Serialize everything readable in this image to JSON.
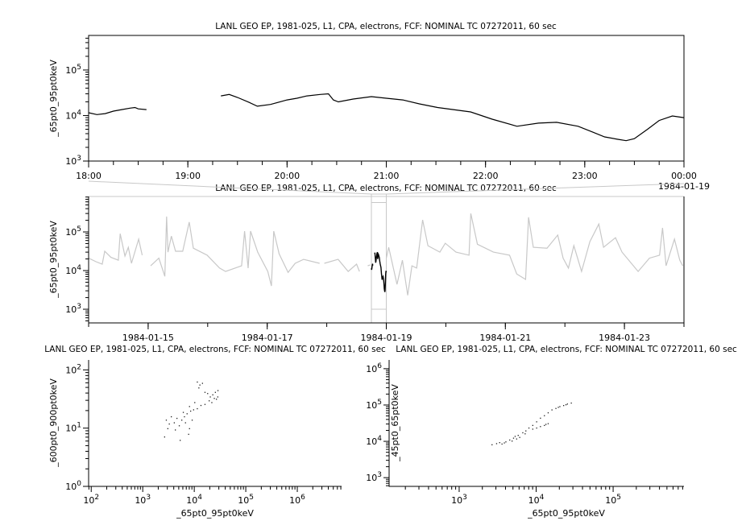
{
  "chart_data": [
    {
      "type": "line",
      "title": "LANL GEO EP, 1981-025, L1, CPA, electrons, FCF: NOMINAL TC 07272011, 60 sec",
      "ylabel": "_65pt0_95pt0keV",
      "xlabel": "",
      "y_scale": "log",
      "ylim": [
        1000,
        575000
      ],
      "xlim": [
        "1984-01-18T18:00",
        "1984-01-19T00:00"
      ],
      "x_ticks": [
        {
          "t": "1984-01-18T18:00",
          "label": "18:00"
        },
        {
          "t": "1984-01-18T19:00",
          "label": "19:00"
        },
        {
          "t": "1984-01-18T20:00",
          "label": "20:00"
        },
        {
          "t": "1984-01-18T21:00",
          "label": "21:00"
        },
        {
          "t": "1984-01-18T22:00",
          "label": "22:00"
        },
        {
          "t": "1984-01-18T23:00",
          "label": "23:00"
        },
        {
          "t": "1984-01-19T00:00",
          "label": "00:00"
        }
      ],
      "x_date_label": "1984-01-19",
      "y_ticks": [
        {
          "v": 1000,
          "label": "10^3"
        },
        {
          "v": 10000,
          "label": "10^4"
        },
        {
          "v": 100000,
          "label": "10^5"
        }
      ],
      "line_color": "#000000",
      "segments": [
        [
          [
            "1984-01-18T18:00",
            11500
          ],
          [
            "1984-01-18T18:05",
            10500
          ],
          [
            "1984-01-18T18:10",
            11000
          ],
          [
            "1984-01-18T18:15",
            12500
          ],
          [
            "1984-01-18T18:20",
            13500
          ],
          [
            "1984-01-18T18:25",
            14500
          ],
          [
            "1984-01-18T18:28",
            15000
          ],
          [
            "1984-01-18T18:30",
            14000
          ],
          [
            "1984-01-18T18:35",
            13500
          ]
        ],
        [
          [
            "1984-01-18T19:20",
            27000
          ],
          [
            "1984-01-18T19:25",
            29000
          ],
          [
            "1984-01-18T19:30",
            25000
          ],
          [
            "1984-01-18T19:37",
            19500
          ],
          [
            "1984-01-18T19:42",
            16000
          ],
          [
            "1984-01-18T19:50",
            17500
          ],
          [
            "1984-01-18T20:00",
            22000
          ],
          [
            "1984-01-18T20:06",
            24000
          ],
          [
            "1984-01-18T20:12",
            27000
          ],
          [
            "1984-01-18T20:20",
            29000
          ],
          [
            "1984-01-18T20:25",
            30000
          ],
          [
            "1984-01-18T20:28",
            22000
          ],
          [
            "1984-01-18T20:31",
            20000
          ],
          [
            "1984-01-18T20:40",
            23000
          ],
          [
            "1984-01-18T20:51",
            26000
          ],
          [
            "1984-01-18T21:00",
            24000
          ],
          [
            "1984-01-18T21:10",
            22000
          ],
          [
            "1984-01-18T21:20",
            18000
          ],
          [
            "1984-01-18T21:31",
            15000
          ],
          [
            "1984-01-18T21:51",
            12000
          ],
          [
            "1984-01-18T22:04",
            8300
          ],
          [
            "1984-01-18T22:19",
            5800
          ],
          [
            "1984-01-18T22:32",
            6800
          ],
          [
            "1984-01-18T22:43",
            7100
          ],
          [
            "1984-01-18T22:56",
            5800
          ],
          [
            "1984-01-18T23:05",
            4300
          ],
          [
            "1984-01-18T23:12",
            3400
          ],
          [
            "1984-01-18T23:20",
            3000
          ],
          [
            "1984-01-18T23:25",
            2800
          ],
          [
            "1984-01-18T23:30",
            3100
          ],
          [
            "1984-01-18T23:38",
            5000
          ],
          [
            "1984-01-18T23:45",
            7800
          ],
          [
            "1984-01-18T23:53",
            9800
          ],
          [
            "1984-01-19T00:00",
            9000
          ]
        ]
      ]
    },
    {
      "type": "line",
      "title": "LANL GEO EP, 1981-025, L1, CPA, electrons, FCF: NOMINAL TC 07272011, 60 sec",
      "ylabel": "_65pt0_95pt0keV",
      "xlabel": "",
      "y_scale": "log",
      "ylim": [
        443,
        826000
      ],
      "xlim": [
        "1984-01-14T00:00",
        "1984-01-24T00:00"
      ],
      "x_ticks": [
        {
          "t": "1984-01-15T00:00",
          "label": "1984-01-15"
        },
        {
          "t": "1984-01-17T00:00",
          "label": "1984-01-17"
        },
        {
          "t": "1984-01-19T00:00",
          "label": "1984-01-19"
        },
        {
          "t": "1984-01-21T00:00",
          "label": "1984-01-21"
        },
        {
          "t": "1984-01-23T00:00",
          "label": "1984-01-23"
        }
      ],
      "y_ticks": [
        {
          "v": 1000,
          "label": "10^3"
        },
        {
          "v": 10000,
          "label": "10^4"
        },
        {
          "v": 100000,
          "label": "10^5"
        }
      ],
      "context_color": "#c8c8c8",
      "highlight_range": [
        "1984-01-18T18:00",
        "1984-01-19T00:00"
      ],
      "segments": [
        [
          [
            "1984-01-14T00:00",
            21000
          ],
          [
            "1984-01-14T03:00",
            17000
          ],
          [
            "1984-01-14T05:30",
            14700
          ],
          [
            "1984-01-14T06:29",
            31600
          ],
          [
            "1984-01-14T09:00",
            22000
          ],
          [
            "1984-01-14T12:00",
            18600
          ],
          [
            "1984-01-14T12:43",
            90000
          ],
          [
            "1984-01-14T14:38",
            23700
          ],
          [
            "1984-01-14T16:00",
            40000
          ],
          [
            "1984-01-14T17:17",
            15400
          ],
          [
            "1984-01-14T20:10",
            65000
          ],
          [
            "1984-01-14T21:36",
            25000
          ]
        ],
        [
          [
            "1984-01-15T01:00",
            13300
          ],
          [
            "1984-01-15T04:19",
            21000
          ],
          [
            "1984-01-15T06:43",
            7100
          ],
          [
            "1984-01-15T07:26",
            250000
          ],
          [
            "1984-01-15T08:00",
            30000
          ],
          [
            "1984-01-15T09:22",
            78000
          ],
          [
            "1984-01-15T11:02",
            31600
          ],
          [
            "1984-01-15T13:55",
            31600
          ],
          [
            "1984-01-15T16:34",
            180000
          ],
          [
            "1984-01-15T18:14",
            38000
          ],
          [
            "1984-01-15T23:46",
            25000
          ],
          [
            "1984-01-16T04:48",
            11600
          ],
          [
            "1984-01-16T07:12",
            9500
          ],
          [
            "1984-01-16T13:41",
            13300
          ],
          [
            "1984-01-16T14:53",
            105000
          ],
          [
            "1984-01-16T16:19",
            11600
          ],
          [
            "1984-01-16T17:17",
            105000
          ],
          [
            "1984-01-16T20:10",
            30000
          ],
          [
            "1984-01-17T00:14",
            9500
          ],
          [
            "1984-01-17T01:41",
            4000
          ],
          [
            "1984-01-17T02:38",
            105000
          ],
          [
            "1984-01-17T04:48",
            27000
          ],
          [
            "1984-01-17T08:24",
            9000
          ],
          [
            "1984-01-17T11:17",
            15400
          ],
          [
            "1984-01-17T14:38",
            19500
          ],
          [
            "1984-01-17T21:07",
            15400
          ]
        ],
        [
          [
            "1984-01-17T23:02",
            15400
          ],
          [
            "1984-01-18T04:34",
            19500
          ],
          [
            "1984-01-18T08:38",
            9500
          ],
          [
            "1984-01-18T12:00",
            14700
          ],
          [
            "1984-01-18T13:12",
            9500
          ]
        ],
        [
          [
            "1984-01-18T16:30",
            13300
          ],
          [
            "1984-01-18T17:31",
            14000
          ]
        ],
        [
          [
            "1984-01-19T00:00",
            21000
          ],
          [
            "1984-01-19T00:58",
            40000
          ],
          [
            "1984-01-19T04:19",
            4400
          ],
          [
            "1984-01-19T06:29",
            18600
          ],
          [
            "1984-01-19T08:38",
            2300
          ],
          [
            "1984-01-19T10:19",
            13300
          ],
          [
            "1984-01-19T12:14",
            11600
          ],
          [
            "1984-01-19T14:38",
            205000
          ],
          [
            "1984-01-19T16:48",
            44000
          ],
          [
            "1984-01-19T21:36",
            30000
          ],
          [
            "1984-01-19T23:46",
            51000
          ],
          [
            "1984-01-20T04:05",
            30000
          ],
          [
            "1984-01-20T09:22",
            25000
          ],
          [
            "1984-01-20T10:05",
            300000
          ],
          [
            "1984-01-20T12:43",
            48000
          ],
          [
            "1984-01-20T19:12",
            30000
          ],
          [
            "1984-01-21T01:41",
            25000
          ],
          [
            "1984-01-21T04:34",
            8200
          ],
          [
            "1984-01-21T08:10",
            5900
          ],
          [
            "1984-01-21T09:22",
            240000
          ],
          [
            "1984-01-21T11:17",
            40000
          ],
          [
            "1984-01-21T16:48",
            38000
          ],
          [
            "1984-01-21T21:07",
            83000
          ],
          [
            "1984-01-21T23:17",
            21000
          ],
          [
            "1984-01-22T01:26",
            11600
          ],
          [
            "1984-01-22T03:36",
            44000
          ],
          [
            "1984-01-22T06:43",
            9500
          ],
          [
            "1984-01-22T10:05",
            56000
          ],
          [
            "1984-01-22T13:41",
            160000
          ],
          [
            "1984-01-22T15:36",
            40000
          ],
          [
            "1984-01-22T20:24",
            71000
          ],
          [
            "1984-01-22T23:02",
            30000
          ],
          [
            "1984-01-23T05:31",
            9500
          ],
          [
            "1984-01-23T10:05",
            21000
          ],
          [
            "1984-01-23T14:10",
            25000
          ],
          [
            "1984-01-23T15:22",
            127000
          ],
          [
            "1984-01-23T16:48",
            13300
          ],
          [
            "1984-01-23T20:10",
            65000
          ],
          [
            "1984-01-23T22:19",
            18600
          ],
          [
            "1984-01-23T23:31",
            13300
          ]
        ]
      ]
    },
    {
      "type": "scatter",
      "title": "LANL GEO EP, 1981-025, L1, CPA, electrons, FCF: NOMINAL TC 07272011, 60 sec",
      "xlabel": "_65pt0_95pt0keV",
      "ylabel": "_600pt0_900pt0keV",
      "x_scale": "log",
      "y_scale": "log",
      "xlim": [
        89,
        7240000
      ],
      "ylim": [
        1,
        148
      ],
      "x_ticks": [
        {
          "v": 100,
          "label": "10^2"
        },
        {
          "v": 1000,
          "label": "10^3"
        },
        {
          "v": 10000,
          "label": "10^4"
        },
        {
          "v": 100000,
          "label": "10^5"
        },
        {
          "v": 1000000,
          "label": "10^6"
        }
      ],
      "y_ticks": [
        {
          "v": 1,
          "label": "10^0"
        },
        {
          "v": 10,
          "label": "10^1"
        },
        {
          "v": 100,
          "label": "10^2"
        }
      ],
      "points": [
        [
          11200,
          63
        ],
        [
          12600,
          56
        ],
        [
          14100,
          60
        ],
        [
          12000,
          50
        ],
        [
          15800,
          42
        ],
        [
          17800,
          40
        ],
        [
          20000,
          35
        ],
        [
          22400,
          38
        ],
        [
          25100,
          42
        ],
        [
          28200,
          45
        ],
        [
          26300,
          32
        ],
        [
          21400,
          28
        ],
        [
          19000,
          30
        ],
        [
          24000,
          33
        ],
        [
          28000,
          35
        ],
        [
          15800,
          26
        ],
        [
          13200,
          25
        ],
        [
          11200,
          22
        ],
        [
          9500,
          21
        ],
        [
          8300,
          20
        ],
        [
          7100,
          18
        ],
        [
          6300,
          16
        ],
        [
          5600,
          14
        ],
        [
          6600,
          12.6
        ],
        [
          5000,
          11.2
        ],
        [
          4500,
          15
        ],
        [
          4000,
          12.6
        ],
        [
          3500,
          16
        ],
        [
          3200,
          12
        ],
        [
          2800,
          14
        ],
        [
          3000,
          10
        ],
        [
          4200,
          9.5
        ],
        [
          7900,
          10
        ],
        [
          8900,
          14
        ],
        [
          6000,
          19
        ],
        [
          7600,
          8
        ],
        [
          5200,
          6.3
        ],
        [
          2600,
          7.2
        ],
        [
          7900,
          24
        ],
        [
          10000,
          28
        ]
      ]
    },
    {
      "type": "scatter",
      "title": "LANL GEO EP, 1981-025, L1, CPA, electrons, FCF: NOMINAL TC 07272011, 60 sec",
      "xlabel": "_65pt0_95pt0keV",
      "ylabel": "_45pt0_65pt0keV",
      "x_scale": "log",
      "y_scale": "log",
      "xlim": [
        123,
        832000
      ],
      "ylim": [
        575,
        1740000
      ],
      "x_ticks": [
        {
          "v": 1000,
          "label": "10^3"
        },
        {
          "v": 10000,
          "label": "10^4"
        },
        {
          "v": 100000,
          "label": "10^5"
        }
      ],
      "y_ticks": [
        {
          "v": 1000,
          "label": "10^3"
        },
        {
          "v": 10000,
          "label": "10^4"
        },
        {
          "v": 100000,
          "label": "10^5"
        },
        {
          "v": 1000000,
          "label": "10^6"
        }
      ],
      "points": [
        [
          2630,
          8300
        ],
        [
          3020,
          8900
        ],
        [
          3310,
          9550
        ],
        [
          3550,
          8700
        ],
        [
          3980,
          10000
        ],
        [
          4470,
          11200
        ],
        [
          5010,
          12600
        ],
        [
          5250,
          14100
        ],
        [
          5750,
          15100
        ],
        [
          6030,
          13200
        ],
        [
          5500,
          12000
        ],
        [
          6610,
          17800
        ],
        [
          7240,
          20000
        ],
        [
          7940,
          24000
        ],
        [
          8910,
          28200
        ],
        [
          10000,
          35500
        ],
        [
          11200,
          44700
        ],
        [
          12600,
          52500
        ],
        [
          14100,
          63100
        ],
        [
          15800,
          75900
        ],
        [
          17800,
          83200
        ],
        [
          20000,
          93300
        ],
        [
          22400,
          100000
        ],
        [
          25100,
          110000
        ],
        [
          28200,
          117000
        ],
        [
          24000,
          105000
        ],
        [
          19100,
          89100
        ],
        [
          8910,
          22400
        ],
        [
          10000,
          24000
        ],
        [
          11200,
          26300
        ],
        [
          12600,
          28200
        ],
        [
          14100,
          31600
        ],
        [
          13200,
          30200
        ],
        [
          7080,
          16600
        ],
        [
          4790,
          10500
        ],
        [
          3800,
          9330
        ]
      ]
    }
  ]
}
